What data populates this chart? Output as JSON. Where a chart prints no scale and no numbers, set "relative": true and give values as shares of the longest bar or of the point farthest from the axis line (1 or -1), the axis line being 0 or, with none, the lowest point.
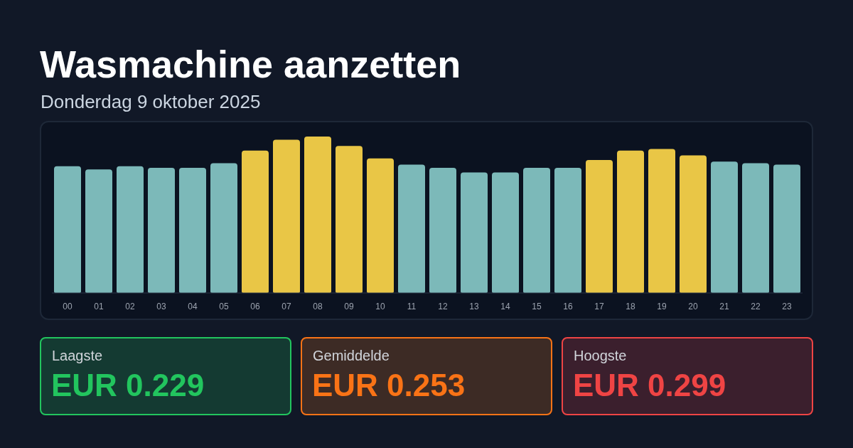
{
  "chart_data": [
    {
      "type": "bar",
      "title": "Wasmachine aanzetten",
      "subtitle": "Donderdag 9 oktober 2025",
      "categories": [
        "00",
        "01",
        "02",
        "03",
        "04",
        "05",
        "06",
        "07",
        "08",
        "09",
        "10",
        "11",
        "12",
        "13",
        "14",
        "15",
        "16",
        "17",
        "18",
        "19",
        "20",
        "21",
        "22",
        "23"
      ],
      "values": [
        0.81,
        0.79,
        0.81,
        0.8,
        0.8,
        0.83,
        0.91,
        0.98,
        1,
        0.94,
        0.86,
        0.82,
        0.8,
        0.77,
        0.77,
        0.8,
        0.8,
        0.85,
        0.91,
        0.92,
        0.88,
        0.84,
        0.83,
        0.82
      ],
      "colors": [
        "#7cb9b9",
        "#7cb9b9",
        "#7cb9b9",
        "#7cb9b9",
        "#7cb9b9",
        "#7cb9b9",
        "#e9c646",
        "#e9c646",
        "#e9c646",
        "#e9c646",
        "#e9c646",
        "#7cb9b9",
        "#7cb9b9",
        "#7cb9b9",
        "#7cb9b9",
        "#7cb9b9",
        "#7cb9b9",
        "#e9c646",
        "#e9c646",
        "#e9c646",
        "#e9c646",
        "#7cb9b9",
        "#7cb9b9",
        "#7cb9b9"
      ],
      "relative": true
    },
    {
      "type": "other",
      "annotations": [
        "Laagste",
        "EUR 0.229"
      ]
    },
    {
      "type": "other",
      "annotations": [
        "Gemiddelde",
        "EUR 0.253"
      ]
    },
    {
      "type": "other",
      "annotations": [
        "Hoogste",
        "EUR 0.299"
      ]
    }
  ]
}
